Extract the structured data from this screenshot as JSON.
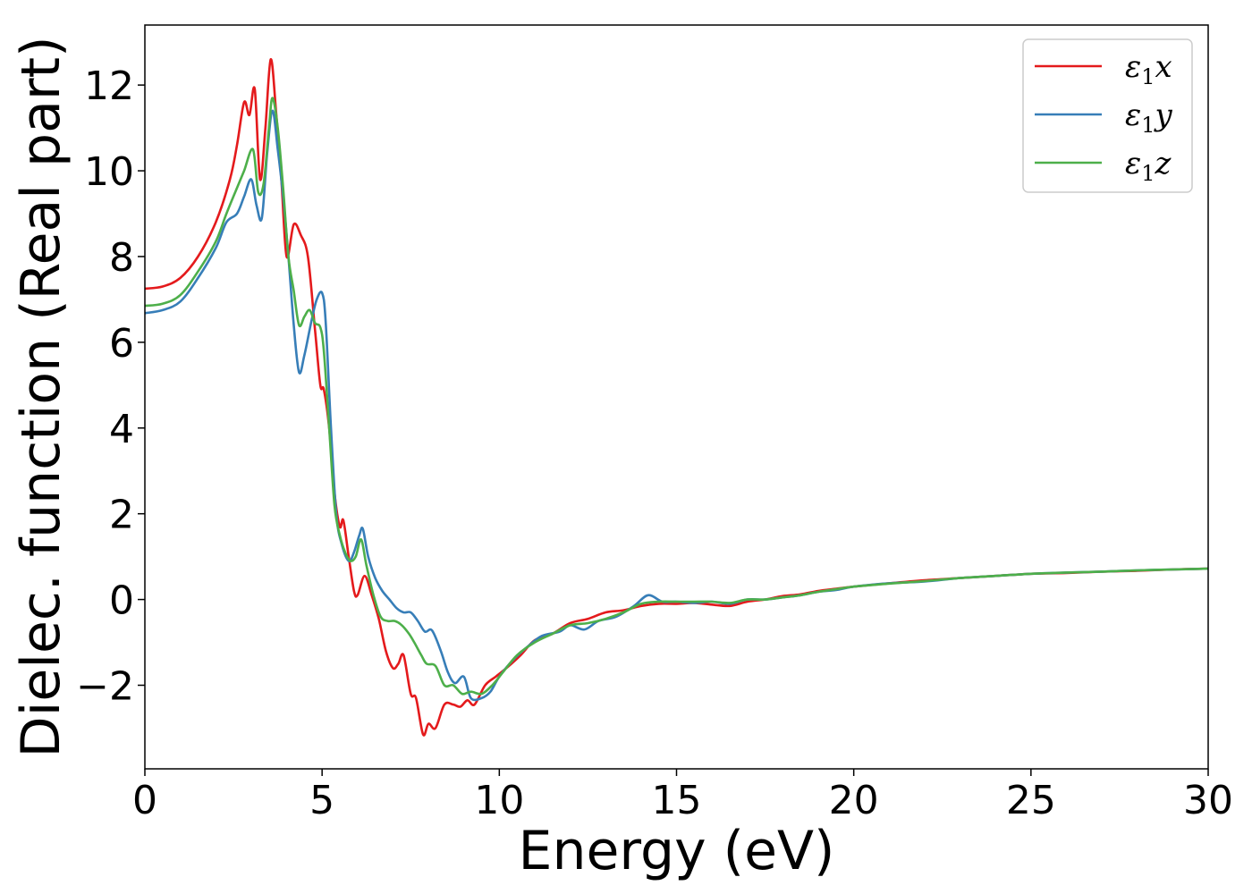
{
  "chart_data": {
    "type": "line",
    "xlabel": "Energy (eV)",
    "ylabel": "Dielec. function (Real part)",
    "xlim": [
      0,
      30
    ],
    "ylim": [
      -3.95,
      13.4
    ],
    "xticks": [
      0,
      5,
      10,
      15,
      20,
      25,
      30
    ],
    "xtick_labels": [
      "0",
      "5",
      "10",
      "15",
      "20",
      "25",
      "30"
    ],
    "yticks": [
      -2,
      0,
      2,
      4,
      6,
      8,
      10,
      12
    ],
    "ytick_labels": [
      "−2",
      "0",
      "2",
      "4",
      "6",
      "8",
      "10",
      "12"
    ],
    "grid": false,
    "legend_position": "top-right",
    "series": [
      {
        "name": "ε1x",
        "legend": {
          "symbol": "ε",
          "sub": "1",
          "axis": "x"
        },
        "color": "#e41a1c",
        "points": [
          [
            0,
            7.25
          ],
          [
            0.5,
            7.3
          ],
          [
            1,
            7.5
          ],
          [
            1.5,
            8.0
          ],
          [
            2,
            8.8
          ],
          [
            2.4,
            9.8
          ],
          [
            2.6,
            10.6
          ],
          [
            2.8,
            11.6
          ],
          [
            2.95,
            11.3
          ],
          [
            3.1,
            11.9
          ],
          [
            3.25,
            9.8
          ],
          [
            3.4,
            11.0
          ],
          [
            3.55,
            12.6
          ],
          [
            3.7,
            11.4
          ],
          [
            3.85,
            9.8
          ],
          [
            4.0,
            8.0
          ],
          [
            4.2,
            8.75
          ],
          [
            4.4,
            8.5
          ],
          [
            4.6,
            8.0
          ],
          [
            4.8,
            6.3
          ],
          [
            4.95,
            5.0
          ],
          [
            5.05,
            4.9
          ],
          [
            5.2,
            4.0
          ],
          [
            5.35,
            2.5
          ],
          [
            5.5,
            1.7
          ],
          [
            5.6,
            1.85
          ],
          [
            5.75,
            1.0
          ],
          [
            5.9,
            0.2
          ],
          [
            6.0,
            0.1
          ],
          [
            6.2,
            0.55
          ],
          [
            6.4,
            0.1
          ],
          [
            6.6,
            -0.45
          ],
          [
            6.8,
            -1.2
          ],
          [
            7.0,
            -1.6
          ],
          [
            7.15,
            -1.5
          ],
          [
            7.3,
            -1.3
          ],
          [
            7.5,
            -2.2
          ],
          [
            7.65,
            -2.3
          ],
          [
            7.85,
            -3.15
          ],
          [
            8.0,
            -2.9
          ],
          [
            8.2,
            -3.0
          ],
          [
            8.45,
            -2.45
          ],
          [
            8.7,
            -2.45
          ],
          [
            8.9,
            -2.5
          ],
          [
            9.1,
            -2.35
          ],
          [
            9.3,
            -2.45
          ],
          [
            9.6,
            -2.0
          ],
          [
            9.9,
            -1.8
          ],
          [
            10.2,
            -1.6
          ],
          [
            10.6,
            -1.3
          ],
          [
            11.0,
            -0.95
          ],
          [
            11.5,
            -0.8
          ],
          [
            12.0,
            -0.55
          ],
          [
            12.5,
            -0.45
          ],
          [
            13.0,
            -0.3
          ],
          [
            13.5,
            -0.25
          ],
          [
            14.0,
            -0.15
          ],
          [
            14.5,
            -0.1
          ],
          [
            15.0,
            -0.1
          ],
          [
            15.5,
            -0.08
          ],
          [
            16.0,
            -0.12
          ],
          [
            16.5,
            -0.15
          ],
          [
            17.0,
            -0.05
          ],
          [
            17.5,
            0.0
          ],
          [
            18.0,
            0.08
          ],
          [
            18.5,
            0.12
          ],
          [
            19.0,
            0.2
          ],
          [
            19.5,
            0.25
          ],
          [
            20.0,
            0.3
          ],
          [
            21.0,
            0.38
          ],
          [
            22.0,
            0.45
          ],
          [
            23.0,
            0.5
          ],
          [
            24.0,
            0.55
          ],
          [
            25.0,
            0.6
          ],
          [
            26.0,
            0.62
          ],
          [
            27.0,
            0.65
          ],
          [
            28.0,
            0.67
          ],
          [
            29.0,
            0.7
          ],
          [
            30.0,
            0.72
          ]
        ]
      },
      {
        "name": "ε1y",
        "legend": {
          "symbol": "ε",
          "sub": "1",
          "axis": "y"
        },
        "color": "#377eb8",
        "points": [
          [
            0,
            6.68
          ],
          [
            0.5,
            6.75
          ],
          [
            1,
            6.95
          ],
          [
            1.5,
            7.5
          ],
          [
            2,
            8.2
          ],
          [
            2.3,
            8.8
          ],
          [
            2.6,
            9.0
          ],
          [
            2.8,
            9.4
          ],
          [
            3.0,
            9.8
          ],
          [
            3.15,
            9.2
          ],
          [
            3.3,
            8.9
          ],
          [
            3.45,
            10.4
          ],
          [
            3.6,
            11.4
          ],
          [
            3.75,
            10.5
          ],
          [
            3.9,
            9.4
          ],
          [
            4.05,
            8.0
          ],
          [
            4.2,
            6.4
          ],
          [
            4.35,
            5.3
          ],
          [
            4.5,
            5.7
          ],
          [
            4.7,
            6.5
          ],
          [
            4.85,
            7.0
          ],
          [
            5.0,
            7.15
          ],
          [
            5.1,
            6.5
          ],
          [
            5.25,
            4.0
          ],
          [
            5.4,
            2.0
          ],
          [
            5.55,
            1.3
          ],
          [
            5.75,
            0.9
          ],
          [
            5.9,
            1.1
          ],
          [
            6.05,
            1.5
          ],
          [
            6.15,
            1.65
          ],
          [
            6.3,
            1.0
          ],
          [
            6.5,
            0.5
          ],
          [
            6.7,
            0.2
          ],
          [
            6.9,
            0.0
          ],
          [
            7.1,
            -0.2
          ],
          [
            7.3,
            -0.3
          ],
          [
            7.5,
            -0.3
          ],
          [
            7.7,
            -0.5
          ],
          [
            7.9,
            -0.75
          ],
          [
            8.1,
            -0.72
          ],
          [
            8.35,
            -1.2
          ],
          [
            8.55,
            -1.7
          ],
          [
            8.75,
            -1.95
          ],
          [
            9.0,
            -1.8
          ],
          [
            9.2,
            -2.3
          ],
          [
            9.5,
            -2.3
          ],
          [
            9.75,
            -2.15
          ],
          [
            10.0,
            -1.8
          ],
          [
            10.4,
            -1.4
          ],
          [
            10.8,
            -1.1
          ],
          [
            11.2,
            -0.85
          ],
          [
            11.7,
            -0.75
          ],
          [
            12.0,
            -0.6
          ],
          [
            12.4,
            -0.7
          ],
          [
            12.8,
            -0.5
          ],
          [
            13.3,
            -0.4
          ],
          [
            13.8,
            -0.15
          ],
          [
            14.2,
            0.1
          ],
          [
            14.6,
            -0.05
          ],
          [
            15.0,
            -0.05
          ],
          [
            15.5,
            -0.08
          ],
          [
            16.0,
            -0.05
          ],
          [
            16.5,
            -0.1
          ],
          [
            17.0,
            0.0
          ],
          [
            17.5,
            0.0
          ],
          [
            18.0,
            0.05
          ],
          [
            18.5,
            0.1
          ],
          [
            19.0,
            0.18
          ],
          [
            19.5,
            0.22
          ],
          [
            20.0,
            0.3
          ],
          [
            21.0,
            0.38
          ],
          [
            22.0,
            0.42
          ],
          [
            23.0,
            0.5
          ],
          [
            24.0,
            0.55
          ],
          [
            25.0,
            0.6
          ],
          [
            26.0,
            0.63
          ],
          [
            27.0,
            0.65
          ],
          [
            28.0,
            0.68
          ],
          [
            29.0,
            0.7
          ],
          [
            30.0,
            0.72
          ]
        ]
      },
      {
        "name": "ε1z",
        "legend": {
          "symbol": "ε",
          "sub": "1",
          "axis": "z"
        },
        "color": "#4daf4a",
        "points": [
          [
            0,
            6.85
          ],
          [
            0.5,
            6.9
          ],
          [
            1,
            7.1
          ],
          [
            1.5,
            7.65
          ],
          [
            2,
            8.35
          ],
          [
            2.3,
            9.0
          ],
          [
            2.6,
            9.6
          ],
          [
            2.8,
            10.0
          ],
          [
            3.05,
            10.5
          ],
          [
            3.2,
            9.5
          ],
          [
            3.35,
            9.7
          ],
          [
            3.5,
            11.0
          ],
          [
            3.6,
            11.7
          ],
          [
            3.75,
            11.0
          ],
          [
            3.9,
            9.6
          ],
          [
            4.05,
            8.0
          ],
          [
            4.2,
            7.2
          ],
          [
            4.35,
            6.4
          ],
          [
            4.5,
            6.6
          ],
          [
            4.65,
            6.75
          ],
          [
            4.8,
            6.45
          ],
          [
            4.95,
            6.35
          ],
          [
            5.05,
            5.8
          ],
          [
            5.2,
            4.0
          ],
          [
            5.35,
            2.2
          ],
          [
            5.5,
            1.5
          ],
          [
            5.65,
            1.1
          ],
          [
            5.8,
            0.9
          ],
          [
            5.95,
            1.0
          ],
          [
            6.1,
            1.4
          ],
          [
            6.25,
            0.8
          ],
          [
            6.45,
            0.1
          ],
          [
            6.65,
            -0.4
          ],
          [
            6.85,
            -0.5
          ],
          [
            7.05,
            -0.5
          ],
          [
            7.25,
            -0.6
          ],
          [
            7.45,
            -0.8
          ],
          [
            7.6,
            -1.0
          ],
          [
            7.8,
            -1.3
          ],
          [
            7.95,
            -1.5
          ],
          [
            8.2,
            -1.55
          ],
          [
            8.45,
            -2.0
          ],
          [
            8.7,
            -2.0
          ],
          [
            8.95,
            -2.2
          ],
          [
            9.2,
            -2.15
          ],
          [
            9.5,
            -2.2
          ],
          [
            9.8,
            -2.0
          ],
          [
            10.1,
            -1.7
          ],
          [
            10.5,
            -1.3
          ],
          [
            11.0,
            -1.0
          ],
          [
            11.5,
            -0.8
          ],
          [
            12.0,
            -0.6
          ],
          [
            12.5,
            -0.55
          ],
          [
            13.0,
            -0.45
          ],
          [
            13.5,
            -0.3
          ],
          [
            14.0,
            -0.1
          ],
          [
            14.5,
            -0.05
          ],
          [
            15.0,
            -0.05
          ],
          [
            15.5,
            -0.05
          ],
          [
            16.0,
            -0.05
          ],
          [
            16.5,
            -0.08
          ],
          [
            17.0,
            0.0
          ],
          [
            17.5,
            0.0
          ],
          [
            18.0,
            0.05
          ],
          [
            18.5,
            0.1
          ],
          [
            19.0,
            0.18
          ],
          [
            19.5,
            0.24
          ],
          [
            20.0,
            0.3
          ],
          [
            21.0,
            0.37
          ],
          [
            22.0,
            0.43
          ],
          [
            23.0,
            0.5
          ],
          [
            24.0,
            0.55
          ],
          [
            25.0,
            0.6
          ],
          [
            26.0,
            0.63
          ],
          [
            27.0,
            0.65
          ],
          [
            28.0,
            0.68
          ],
          [
            29.0,
            0.7
          ],
          [
            30.0,
            0.72
          ]
        ]
      }
    ]
  }
}
